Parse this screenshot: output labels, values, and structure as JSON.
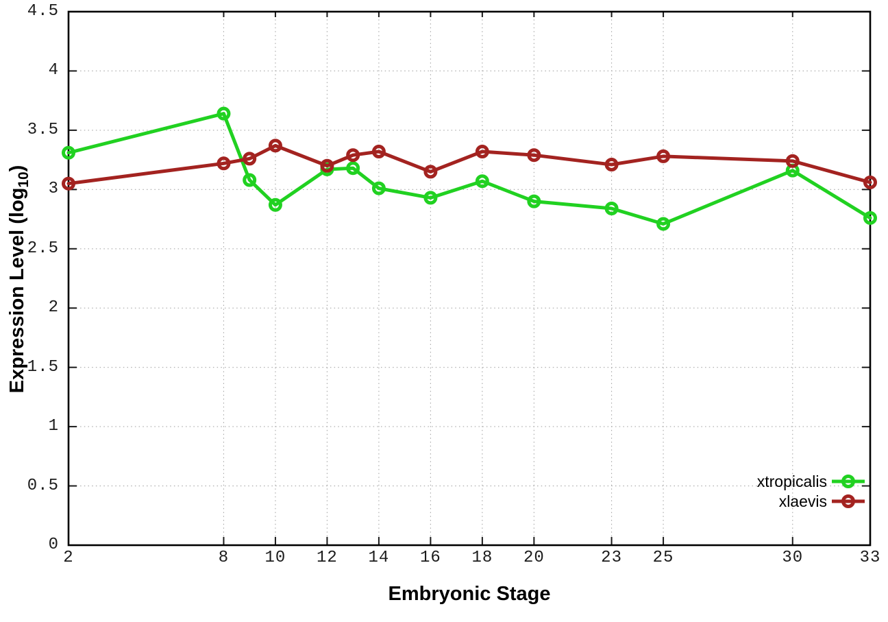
{
  "chart_data": {
    "type": "line",
    "title": "",
    "xlabel": "Embryonic Stage",
    "ylabel": "Expression Level (log10)",
    "ylabel_rich": {
      "prefix": "Expression Level (log",
      "sub": "10",
      "suffix": ")"
    },
    "x": [
      2,
      8,
      9,
      10,
      12,
      13,
      14,
      16,
      18,
      20,
      23,
      25,
      30,
      33
    ],
    "xlim": [
      2,
      33
    ],
    "ylim": [
      0,
      4.5
    ],
    "xtick_values": [
      2,
      8,
      10,
      12,
      14,
      16,
      18,
      20,
      23,
      25,
      30,
      33
    ],
    "xtick_labels": [
      "2",
      "8",
      "10",
      "12",
      "14",
      "16",
      "18",
      "20",
      "23",
      "25",
      "30",
      "33"
    ],
    "ytick_values": [
      0,
      0.5,
      1,
      1.5,
      2,
      2.5,
      3,
      3.5,
      4,
      4.5
    ],
    "ytick_labels": [
      "0",
      "0.5",
      "1",
      "1.5",
      "2",
      "2.5",
      "3",
      "3.5",
      "4",
      "4.5"
    ],
    "grid": "dotted",
    "legend_position": "inside-bottom-right",
    "series": [
      {
        "name": "xtropicalis",
        "color": "#21d121",
        "marker": "open-circle",
        "values": [
          3.31,
          3.64,
          3.08,
          2.87,
          3.17,
          3.18,
          3.01,
          2.93,
          3.07,
          2.9,
          2.84,
          2.71,
          3.16,
          2.76
        ]
      },
      {
        "name": "xlaevis",
        "color": "#a32320",
        "marker": "open-circle",
        "values": [
          3.05,
          3.22,
          3.26,
          3.37,
          3.2,
          3.29,
          3.32,
          3.15,
          3.32,
          3.29,
          3.21,
          3.28,
          3.24,
          3.06
        ]
      }
    ]
  }
}
